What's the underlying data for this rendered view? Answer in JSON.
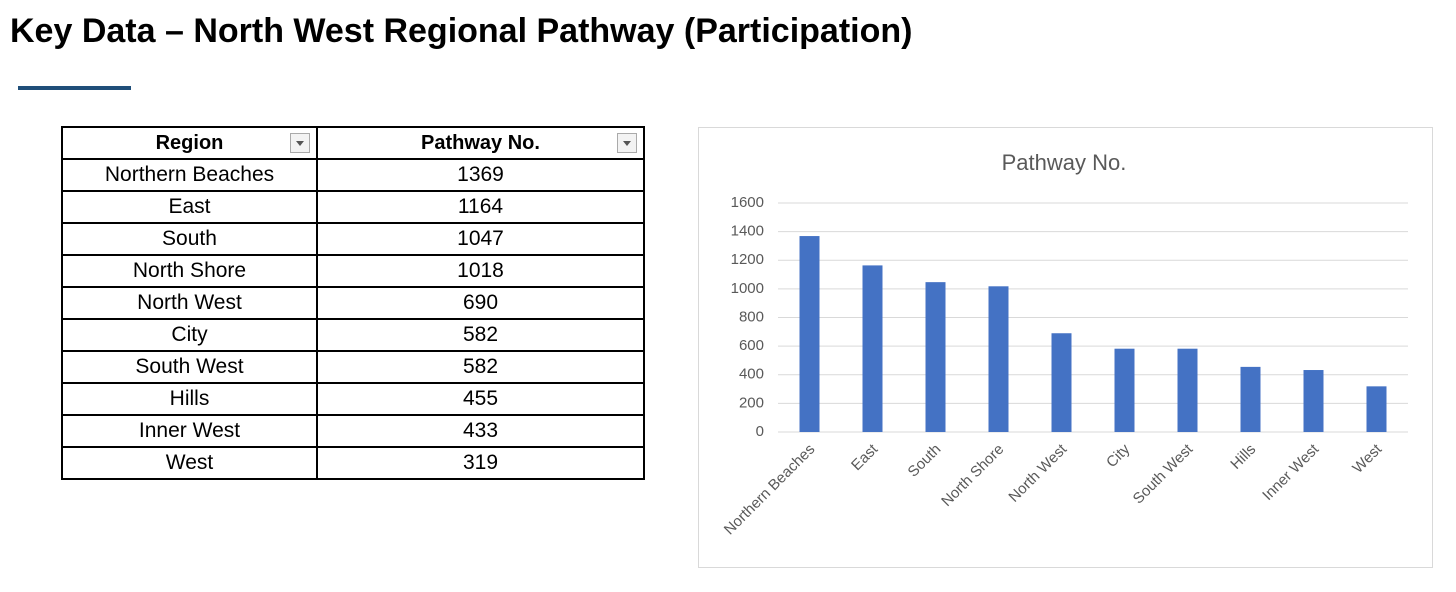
{
  "title": "Key Data – North West Regional Pathway (Participation)",
  "table": {
    "columns": [
      "Region",
      "Pathway No."
    ],
    "rows": [
      [
        "Northern Beaches",
        1369
      ],
      [
        "East",
        1164
      ],
      [
        "South",
        1047
      ],
      [
        "North Shore",
        1018
      ],
      [
        "North West",
        690
      ],
      [
        "City",
        582
      ],
      [
        "South West",
        582
      ],
      [
        "Hills",
        455
      ],
      [
        "Inner West",
        433
      ],
      [
        "West",
        319
      ]
    ]
  },
  "chart_data": {
    "type": "bar",
    "title": "Pathway No.",
    "categories": [
      "Northern Beaches",
      "East",
      "South",
      "North Shore",
      "North West",
      "City",
      "South West",
      "Hills",
      "Inner West",
      "West"
    ],
    "values": [
      1369,
      1164,
      1047,
      1018,
      690,
      582,
      582,
      455,
      433,
      319
    ],
    "color": "#4472c4",
    "ylim": [
      0,
      1600
    ],
    "yticks": [
      0,
      200,
      400,
      600,
      800,
      1000,
      1200,
      1400,
      1600
    ],
    "grid": true
  }
}
